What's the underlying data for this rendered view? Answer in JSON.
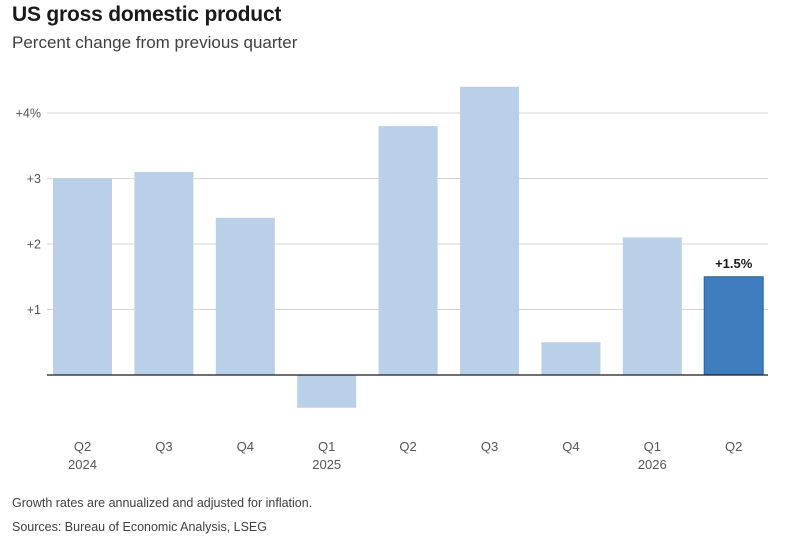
{
  "header": {
    "title": "US gross domestic product",
    "subtitle": "Percent change from previous quarter"
  },
  "footer": {
    "note": "Growth rates are annualized and adjusted for inflation.",
    "source": "Sources: Bureau of Economic Analysis, LSEG"
  },
  "colors": {
    "bar": "#bad0e8",
    "highlight_bar": "#3f7dbf",
    "grid": "#d4d4d4",
    "axis": "#1a1a1a",
    "tick_text": "#555555"
  },
  "chart_data": {
    "type": "bar",
    "categories": [
      "Q2 2024",
      "Q3",
      "Q4",
      "Q1 2025",
      "Q2",
      "Q3",
      "Q4",
      "Q1 2026",
      "Q2"
    ],
    "tick_labels": [
      {
        "line1": "Q2",
        "line2": "2024"
      },
      {
        "line1": "Q3",
        "line2": ""
      },
      {
        "line1": "Q4",
        "line2": ""
      },
      {
        "line1": "Q1",
        "line2": "2025"
      },
      {
        "line1": "Q2",
        "line2": ""
      },
      {
        "line1": "Q3",
        "line2": ""
      },
      {
        "line1": "Q4",
        "line2": ""
      },
      {
        "line1": "Q1",
        "line2": "2026"
      },
      {
        "line1": "Q2",
        "line2": ""
      }
    ],
    "values": [
      3.0,
      3.1,
      2.4,
      -0.5,
      3.8,
      4.4,
      0.5,
      2.1,
      1.5
    ],
    "highlight_index": 8,
    "data_labels": [
      {
        "index": 8,
        "text": "+1.5%"
      }
    ],
    "title": "US gross domestic product",
    "subtitle": "Percent change from previous quarter",
    "xlabel": "",
    "ylabel": "",
    "ylim": [
      -0.5,
      4.4
    ],
    "yticks": [
      {
        "value": 1,
        "label": "+1"
      },
      {
        "value": 2,
        "label": "+2"
      },
      {
        "value": 3,
        "label": "+3"
      },
      {
        "value": 4,
        "label": "+4%"
      }
    ],
    "grid": true,
    "legend": "none"
  }
}
